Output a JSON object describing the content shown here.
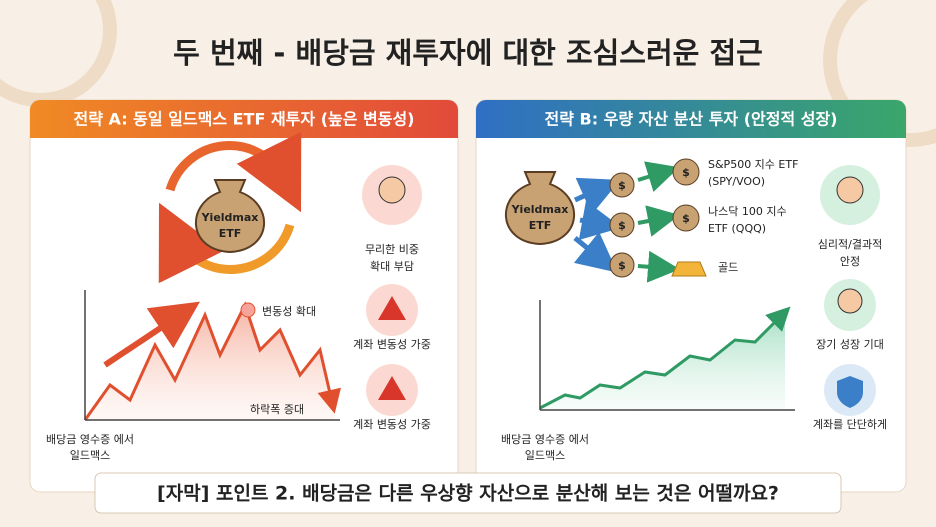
{
  "title": "두 번째 - 배당금 재투자에 대한 조심스러운 접근",
  "panel_a": {
    "header": "전략 A: 동일 일드맥스 ETF 재투자 (높은 변동성)",
    "bag_label": [
      "Yieldmax",
      "ETF"
    ],
    "risks": [
      {
        "lines": [
          "무리한 비중",
          "확대 부담"
        ]
      },
      {
        "lines": [
          "계좌 변동성 가중"
        ]
      },
      {
        "lines": [
          "계좌 변동성 가중"
        ]
      }
    ],
    "annotations": [
      "변동성 확대",
      "하락폭 증대"
    ],
    "axis_label": [
      "배당금 영수증 에서",
      "일드맥스"
    ]
  },
  "panel_b": {
    "header": "전략 B: 우량 자산 분산 투자 (안정적 성장)",
    "bag_label": [
      "Yieldmax",
      "ETF"
    ],
    "bag_symbol": "$",
    "targets": [
      {
        "lines": [
          "S&P500 지수 ETF",
          "(SPY/VOO)"
        ]
      },
      {
        "lines": [
          "나스닥 100 지수",
          "ETF (QQQ)"
        ]
      },
      {
        "lines": [
          "골드"
        ]
      }
    ],
    "benefits": [
      {
        "lines": [
          "심리적/결과적",
          "안정"
        ]
      },
      {
        "lines": [
          "장기 성장 기대"
        ]
      },
      {
        "lines": [
          "계좌를 단단하게"
        ]
      }
    ],
    "axis_label": [
      "배당금 영수증 에서",
      "일드맥스"
    ]
  },
  "caption": "[자막] 포인트 2. 배당금은 다른 우상향 자산으로 분산해 보는 것은 어떨까요?"
}
